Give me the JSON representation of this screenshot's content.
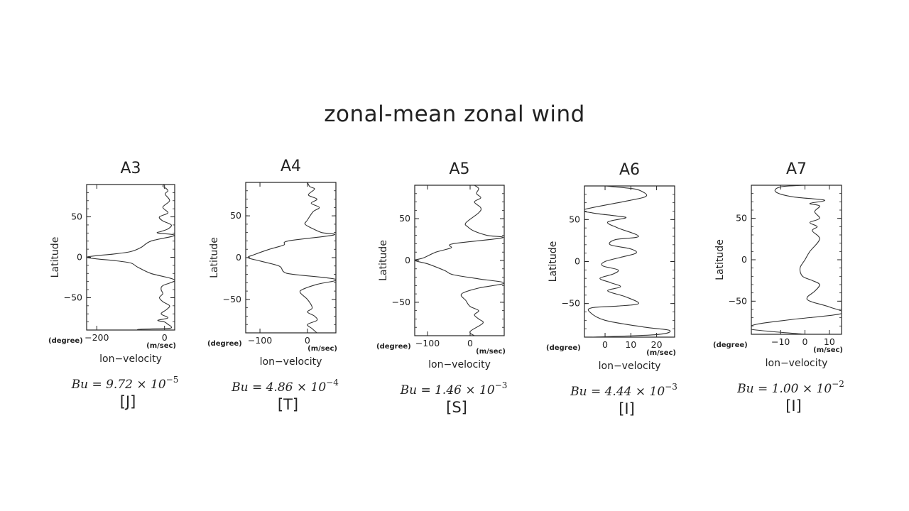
{
  "title": "zonal-mean zonal wind",
  "chart_data": [
    {
      "type": "line",
      "title": "A3",
      "xlabel": "lon−velocity",
      "ylabel": "Latitude",
      "xunit": "(m/sec)",
      "yunit": "(degree)",
      "xlim": [
        -230,
        30
      ],
      "ylim": [
        -90,
        90
      ],
      "xticks": [
        -200,
        0
      ],
      "xtick_labels": [
        "−200",
        "0"
      ],
      "yticks": [
        -50,
        0,
        50
      ],
      "ytick_labels": [
        "−50",
        "0",
        "50"
      ],
      "bu_label": "Bu = 9.72 × 10",
      "bu_exponent": "−5",
      "regime": "[J]",
      "series": [
        {
          "x": [
            0,
            -5,
            5,
            10,
            2,
            15,
            -5,
            10,
            -15,
            -5,
            20,
            10,
            -10,
            -20,
            30,
            -40,
            -70,
            -100,
            -150,
            -200,
            -230,
            -200,
            -150,
            -100,
            -80,
            -40,
            30,
            -5,
            -10,
            -5,
            -15,
            -5,
            15,
            5,
            -10,
            10,
            -20,
            0,
            10,
            20,
            10,
            -70,
            -80
          ],
          "y": [
            90,
            88,
            85,
            82,
            78,
            70,
            62,
            55,
            50,
            45,
            40,
            35,
            32,
            30,
            27,
            20,
            12,
            7,
            4,
            2,
            0,
            -2,
            -4,
            -7,
            -12,
            -20,
            -28,
            -35,
            -40,
            -45,
            -50,
            -55,
            -60,
            -65,
            -70,
            -75,
            -78,
            -80,
            -83,
            -86,
            -88,
            -89,
            -90
          ]
        }
      ]
    },
    {
      "type": "line",
      "title": "A4",
      "xlabel": "lon−velocity",
      "ylabel": "Latitude",
      "xunit": "(m/sec)",
      "yunit": "(degree)",
      "xlim": [
        -130,
        60
      ],
      "ylim": [
        -90,
        90
      ],
      "xticks": [
        -100,
        0
      ],
      "xtick_labels": [
        "−100",
        "0"
      ],
      "yticks": [
        -50,
        0,
        50
      ],
      "ytick_labels": [
        "−50",
        "0",
        "50"
      ],
      "bu_label": "Bu = 4.86 × 10",
      "bu_exponent": "−4",
      "regime": "[T]",
      "series": [
        {
          "x": [
            0,
            5,
            15,
            2,
            20,
            8,
            25,
            12,
            0,
            -5,
            10,
            30,
            55,
            -40,
            -50,
            -80,
            -110,
            -125,
            -100,
            -60,
            -50,
            -30,
            60,
            20,
            -10,
            -15,
            0,
            10,
            0,
            15,
            20,
            0,
            10,
            20
          ],
          "y": [
            90,
            85,
            82,
            75,
            70,
            65,
            60,
            55,
            45,
            40,
            35,
            30,
            27,
            20,
            15,
            10,
            4,
            0,
            -4,
            -10,
            -17,
            -20,
            -26,
            -32,
            -38,
            -42,
            -50,
            -60,
            -65,
            -70,
            -75,
            -80,
            -85,
            -90
          ]
        }
      ]
    },
    {
      "type": "line",
      "title": "A5",
      "xlabel": "lon−velocity",
      "ylabel": "Latitude",
      "xunit": "(m/sec)",
      "yunit": "(degree)",
      "xlim": [
        -130,
        80
      ],
      "ylim": [
        -90,
        90
      ],
      "xticks": [
        -100,
        0
      ],
      "xtick_labels": [
        "−100",
        "0"
      ],
      "yticks": [
        -50,
        0,
        50
      ],
      "ytick_labels": [
        "−50",
        "0",
        "50"
      ],
      "bu_label": "Bu = 1.46 × 10",
      "bu_exponent": "−3",
      "regime": "[S]",
      "series": [
        {
          "x": [
            10,
            20,
            15,
            25,
            10,
            25,
            20,
            -10,
            -5,
            10,
            40,
            75,
            -40,
            -45,
            -80,
            -110,
            -130,
            -100,
            -60,
            -40,
            20,
            80,
            20,
            -20,
            -10,
            0,
            20,
            10,
            20,
            30,
            0,
            10
          ],
          "y": [
            90,
            86,
            80,
            75,
            70,
            63,
            57,
            45,
            40,
            35,
            30,
            27,
            20,
            15,
            10,
            3,
            0,
            -4,
            -12,
            -17,
            -22,
            -27,
            -33,
            -40,
            -48,
            -55,
            -60,
            -65,
            -70,
            -75,
            -85,
            -90
          ]
        }
      ]
    },
    {
      "type": "line",
      "title": "A6",
      "xlabel": "lon−velocity",
      "ylabel": "Latitude",
      "xunit": "(m/sec)",
      "yunit": "(degree)",
      "xlim": [
        -8,
        27
      ],
      "ylim": [
        -90,
        90
      ],
      "xticks": [
        0,
        10,
        20
      ],
      "xtick_labels": [
        "0",
        "10",
        "20"
      ],
      "yticks": [
        -50,
        0,
        50
      ],
      "ytick_labels": [
        "−50",
        "0",
        "50"
      ],
      "bu_label": "Bu = 4.44 × 10",
      "bu_exponent": "−3",
      "regime": "[I]",
      "series": [
        {
          "x": [
            0,
            10,
            14,
            16,
            10,
            -8,
            -5,
            5,
            8,
            1,
            5,
            13,
            4,
            2,
            10,
            12,
            6,
            0,
            -1,
            5,
            3,
            -2,
            2,
            6,
            1,
            8,
            13,
            5,
            -5,
            -6,
            0,
            15,
            25,
            20,
            -5
          ],
          "y": [
            90,
            87,
            84,
            78,
            73,
            62,
            58,
            54,
            52,
            47,
            40,
            30,
            26,
            20,
            15,
            10,
            5,
            0,
            -5,
            -10,
            -15,
            -20,
            -25,
            -30,
            -35,
            -42,
            -50,
            -53,
            -55,
            -60,
            -70,
            -78,
            -82,
            -87,
            -90
          ]
        }
      ]
    },
    {
      "type": "line",
      "title": "A7",
      "xlabel": "lon−velocity",
      "ylabel": "Latitude",
      "xunit": "(m/sec)",
      "yunit": "(degree)",
      "xlim": [
        -22,
        15
      ],
      "ylim": [
        -90,
        90
      ],
      "xticks": [
        -10,
        0,
        10
      ],
      "xtick_labels": [
        "−10",
        "0",
        "10"
      ],
      "yticks": [
        -50,
        0,
        50
      ],
      "ytick_labels": [
        "−50",
        "0",
        "50"
      ],
      "bu_label": "Bu = 1.00 × 10",
      "bu_exponent": "−2",
      "regime": "[I]",
      "series": [
        {
          "x": [
            0,
            -10,
            -12,
            -5,
            8,
            2,
            6,
            4,
            6,
            2,
            5,
            3,
            6,
            2,
            0,
            -2,
            -1,
            3,
            6,
            4,
            1,
            2,
            10,
            15,
            -5,
            -20,
            -22,
            0
          ],
          "y": [
            90,
            88,
            82,
            76,
            72,
            68,
            65,
            58,
            50,
            45,
            40,
            35,
            25,
            10,
            0,
            -10,
            -20,
            -25,
            -30,
            -38,
            -45,
            -50,
            -57,
            -65,
            -72,
            -78,
            -84,
            -90
          ]
        }
      ]
    }
  ]
}
